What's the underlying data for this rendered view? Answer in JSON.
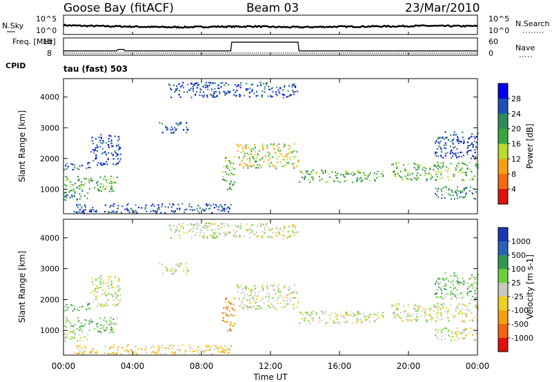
{
  "header": {
    "station": "Goose Bay (fitACF)",
    "beam": "Beam 03",
    "date": "23/Mar/2010",
    "cpid_label": "CPID",
    "cpid_value": "tau (fast) 503"
  },
  "colors": {
    "power": [
      "#0000ee",
      "#1f4fb4",
      "#2f8a5a",
      "#3aa640",
      "#b9dc2e",
      "#f5a010",
      "#f36a10",
      "#e01010"
    ],
    "velocity": [
      "#1b36b0",
      "#2a62b8",
      "#2f9a4f",
      "#6cd03a",
      "#c8c8c0",
      "#f0d020",
      "#f5a010",
      "#f26412",
      "#e01010"
    ]
  },
  "chart_data": [
    {
      "type": "line",
      "panel": "noise",
      "left_label": "N.Sky",
      "right_label": "N.Search",
      "left_ticks": [
        "10^5",
        "10^0"
      ],
      "right_ticks": [
        "10^5",
        "10^0"
      ],
      "series": [
        {
          "name": "N.Sky",
          "x": [
            0,
            1,
            2,
            3,
            4,
            5,
            6,
            7,
            8,
            9,
            10,
            11,
            12,
            13,
            14,
            15,
            16,
            17,
            18,
            19,
            20,
            21,
            22,
            24
          ],
          "values": [
            2.6,
            2.4,
            2.3,
            2.2,
            2.1,
            2.0,
            1.9,
            1.9,
            2.0,
            2.1,
            2.1,
            2.2,
            2.0,
            1.9,
            1.9,
            2.0,
            2.1,
            2.1,
            2.2,
            2.2,
            2.3,
            2.4,
            2.3,
            2.3
          ]
        }
      ]
    },
    {
      "type": "line",
      "panel": "frequency",
      "left_label": "Freq. [MHz]",
      "right_label": "Nave",
      "left_ticks": [
        "18",
        "8"
      ],
      "right_ticks": [
        "60",
        "0"
      ],
      "series": [
        {
          "name": "Freq.",
          "x": [
            0,
            3.1,
            3.15,
            3.5,
            3.55,
            9.7,
            9.75,
            13.6,
            13.65,
            24
          ],
          "values": [
            10,
            10,
            11,
            11,
            10,
            10,
            16,
            16,
            10,
            10
          ]
        }
      ]
    },
    {
      "type": "heatmap",
      "panel": "power",
      "ylabel": "Slant Range [km]",
      "colorbar_label": "Power [dB]",
      "colorbar_ticks": [
        "28",
        "24",
        "20",
        "16",
        "12",
        "8",
        "4"
      ],
      "y_ticks": [
        "4000",
        "3000",
        "2000",
        "1000"
      ],
      "ylim": [
        200,
        4600
      ],
      "xlim": [
        0,
        24
      ]
    },
    {
      "type": "heatmap",
      "panel": "velocity",
      "ylabel": "Slant Range [km]",
      "xlabel": "Time UT",
      "colorbar_label": "Velocity [m s-1]",
      "colorbar_ticks": [
        "1000",
        "500",
        "100",
        "25",
        "-25",
        "-100",
        "-500",
        "-1000"
      ],
      "y_ticks": [
        "4000",
        "3000",
        "2000",
        "1000"
      ],
      "x_ticks": [
        "00:00",
        "04:00",
        "08:00",
        "12:00",
        "16:00",
        "20:00",
        "00:00"
      ],
      "ylim": [
        200,
        4600
      ],
      "xlim": [
        0,
        24
      ]
    }
  ],
  "echo_regions": [
    {
      "t0": 0.0,
      "t1": 1.5,
      "r0": 1650,
      "r1": 1900,
      "pc": 1,
      "vc": 3
    },
    {
      "t0": 0.0,
      "t1": 3.1,
      "r0": 950,
      "r1": 1450,
      "pc": 3,
      "vc": 3
    },
    {
      "t0": 0.0,
      "t1": 1.4,
      "r0": 650,
      "r1": 1000,
      "pc": 2,
      "vc": 4
    },
    {
      "t0": 1.5,
      "t1": 3.3,
      "r0": 1800,
      "r1": 2800,
      "pc": 1,
      "vc": 4
    },
    {
      "t0": 5.5,
      "t1": 7.2,
      "r0": 2850,
      "r1": 3200,
      "pc": 1,
      "vc": 4
    },
    {
      "t0": 0.5,
      "t1": 9.8,
      "r0": 250,
      "r1": 550,
      "pc": 1,
      "vc": 5
    },
    {
      "t0": 9.2,
      "t1": 9.9,
      "r0": 1000,
      "r1": 2100,
      "pc": 3,
      "vc": 6
    },
    {
      "t0": 10.0,
      "t1": 13.6,
      "r0": 1700,
      "r1": 2500,
      "pc": 4,
      "vc": 4
    },
    {
      "t0": 13.6,
      "t1": 18.5,
      "r0": 1250,
      "r1": 1650,
      "pc": 3,
      "vc": 4
    },
    {
      "t0": 19.0,
      "t1": 24.0,
      "r0": 1300,
      "r1": 1900,
      "pc": 3,
      "vc": 4
    },
    {
      "t0": 21.5,
      "t1": 24.0,
      "r0": 700,
      "r1": 1100,
      "pc": 2,
      "vc": 4
    },
    {
      "t0": 21.5,
      "t1": 24.0,
      "r0": 2000,
      "r1": 2900,
      "pc": 1,
      "vc": 3
    },
    {
      "t0": 6.0,
      "t1": 13.6,
      "r0": 4000,
      "r1": 4500,
      "pc": 1,
      "vc": 4
    }
  ]
}
